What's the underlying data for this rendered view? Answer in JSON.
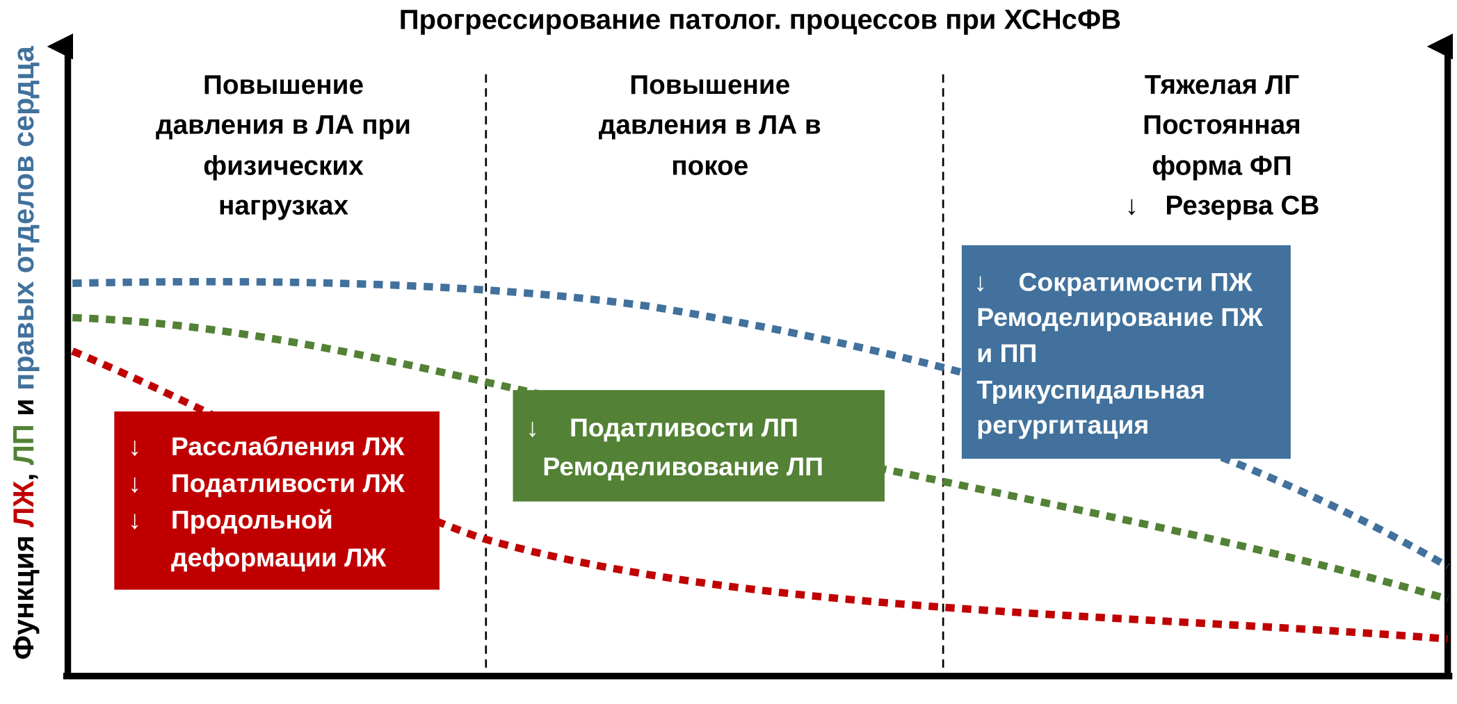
{
  "title": "Прогрессирование патолог. процессов при ХСНсФВ",
  "y_axis_label": {
    "parts": [
      "Функция ",
      "ЛЖ",
      ", ",
      "ЛП",
      " и ",
      "правых отделов сердца"
    ]
  },
  "stages": [
    {
      "lines": [
        "Повышение",
        "давления в ЛА при",
        "физических",
        "нагрузках"
      ]
    },
    {
      "lines": [
        "Повышение",
        "давления в ЛА в",
        "покое"
      ]
    },
    {
      "lines": [
        "Тяжелая ЛГ",
        "Постоянная",
        "форма ФП",
        {
          "arrow": "↓",
          "text": "Резерва СВ"
        }
      ]
    }
  ],
  "boxes": [
    {
      "lines": [
        {
          "arrow": "↓",
          "text": "Расслабления ЛЖ"
        },
        {
          "arrow": "↓",
          "text": "Податливости ЛЖ"
        },
        {
          "arrow": "↓",
          "text": "Продольной"
        },
        {
          "text": "деформации  ЛЖ"
        }
      ]
    },
    {
      "lines": [
        {
          "arrow": "↓",
          "text": "Податливости ЛП"
        },
        {
          "text": "Ремоделивование ЛП"
        }
      ]
    },
    {
      "lines": [
        {
          "arrow": "↓",
          "text": "Сократимости ПЖ"
        },
        {
          "text": "Ремоделирование ПЖ"
        },
        {
          "text": "и ПП"
        },
        {
          "text": "Трикуспидальная"
        },
        {
          "text": "регургитация"
        }
      ]
    }
  ]
}
